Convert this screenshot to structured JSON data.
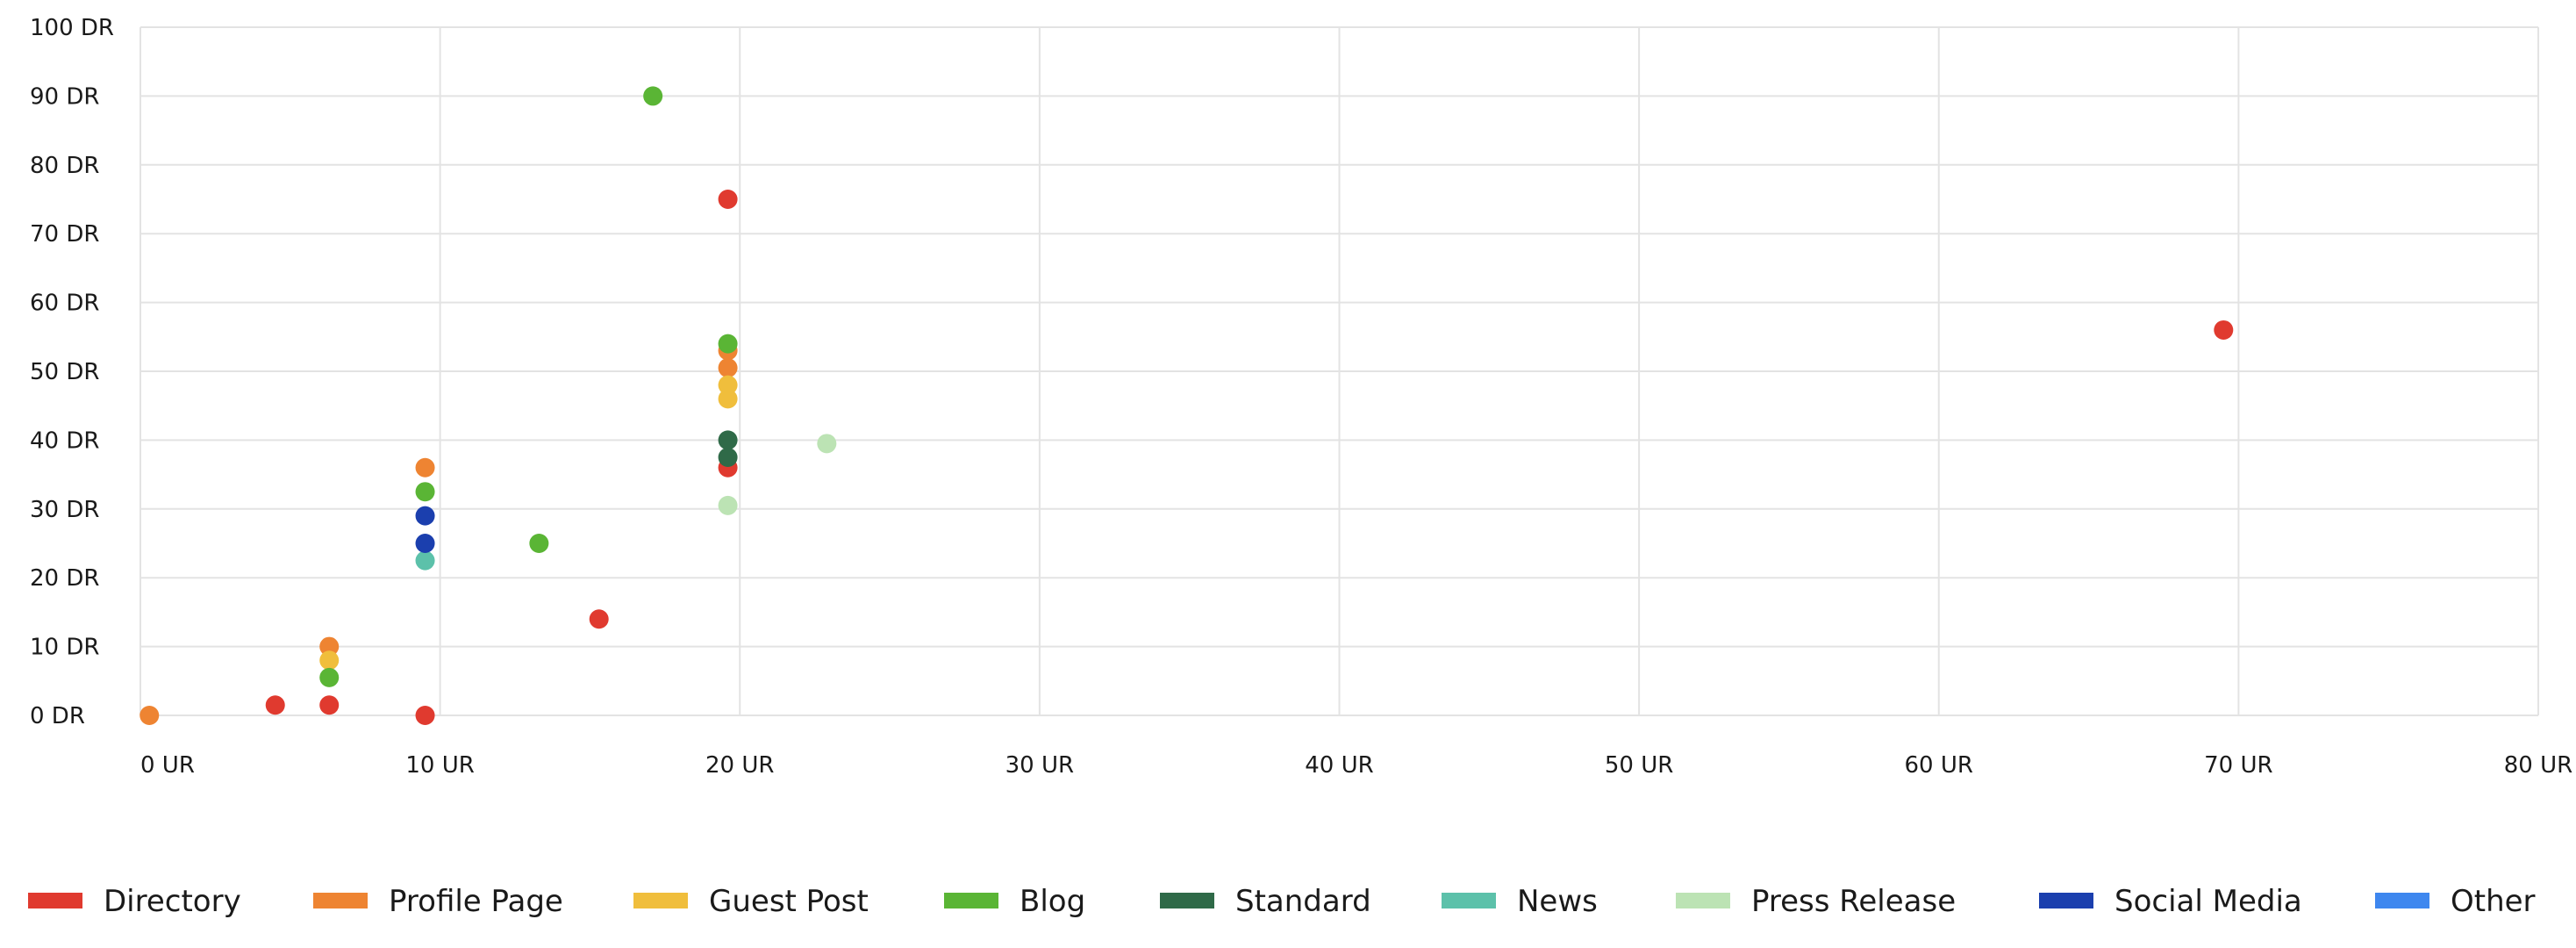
{
  "chart_data": {
    "type": "scatter",
    "x_axis": {
      "range": [
        0,
        80
      ],
      "ticks": [
        0,
        10,
        20,
        30,
        40,
        50,
        60,
        70,
        80
      ],
      "unit": "UR"
    },
    "y_axis": {
      "range": [
        0,
        100
      ],
      "ticks": [
        0,
        10,
        20,
        30,
        40,
        50,
        60,
        70,
        80,
        90,
        100
      ],
      "unit": "DR"
    },
    "x_tick_labels": [
      "0 UR",
      "10 UR",
      "20 UR",
      "30 UR",
      "40 UR",
      "50 UR",
      "60 UR",
      "70 UR",
      "80 UR"
    ],
    "y_tick_labels": [
      "0 DR",
      "10 DR",
      "20 DR",
      "30 DR",
      "40 DR",
      "50 DR",
      "60 DR",
      "70 DR",
      "80 DR",
      "90 DR",
      "100 DR"
    ],
    "grid": true,
    "legend_position": "bottom",
    "series": [
      {
        "name": "Directory",
        "color": "#e03a2f",
        "points": [
          [
            4.5,
            1.5
          ],
          [
            6.3,
            1.5
          ],
          [
            9.5,
            0
          ],
          [
            15.3,
            14
          ],
          [
            19.6,
            75
          ],
          [
            19.6,
            36
          ],
          [
            69.5,
            56
          ]
        ]
      },
      {
        "name": "Profile Page",
        "color": "#ee8432",
        "points": [
          [
            0.3,
            0
          ],
          [
            6.3,
            10
          ],
          [
            9.5,
            36
          ],
          [
            19.6,
            53
          ],
          [
            19.6,
            50.5
          ]
        ]
      },
      {
        "name": "Guest Post",
        "color": "#f0be3c",
        "points": [
          [
            6.3,
            8
          ],
          [
            19.6,
            48
          ],
          [
            19.6,
            46
          ]
        ]
      },
      {
        "name": "Blog",
        "color": "#5ab535",
        "points": [
          [
            6.3,
            5.5
          ],
          [
            9.5,
            32.5
          ],
          [
            13.3,
            25
          ],
          [
            17.1,
            90
          ],
          [
            19.6,
            54
          ]
        ]
      },
      {
        "name": "Standard",
        "color": "#2f6a48",
        "points": [
          [
            19.6,
            40
          ],
          [
            19.6,
            37.5
          ]
        ]
      },
      {
        "name": "News",
        "color": "#5cc1aa",
        "points": [
          [
            9.5,
            22.5
          ]
        ]
      },
      {
        "name": "Press Release",
        "color": "#bce3b4",
        "points": [
          [
            19.6,
            30.5
          ],
          [
            22.9,
            39.5
          ]
        ]
      },
      {
        "name": "Social Media",
        "color": "#1b3fae",
        "points": [
          [
            9.5,
            29
          ],
          [
            9.5,
            25
          ]
        ]
      },
      {
        "name": "Other",
        "color": "#3e87ef",
        "points": []
      }
    ]
  }
}
